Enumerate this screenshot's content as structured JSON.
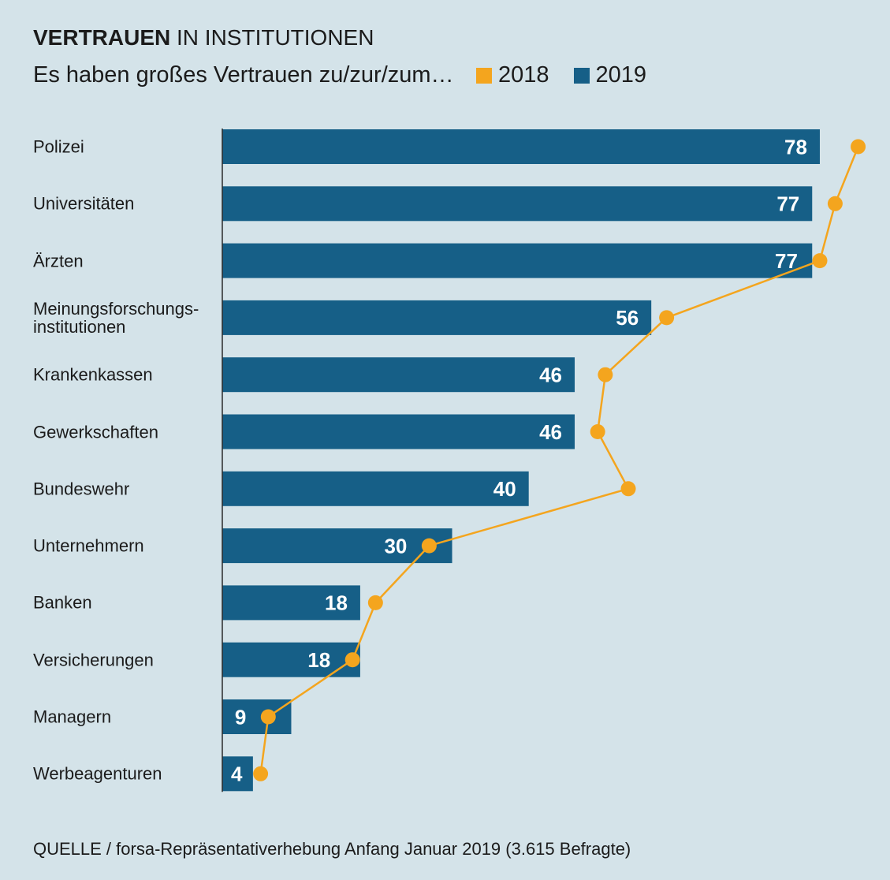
{
  "chart_data": {
    "type": "bar",
    "title_bold": "VERTRAUEN",
    "title_rest": "IN INSTITUTIONEN",
    "subtitle": "Es haben großes Vertrauen zu/zur/zum…",
    "xlim": [
      0,
      85
    ],
    "grid": false,
    "legend": "top",
    "categories": [
      "Polizei",
      "Universitäten",
      "Ärzten",
      "Meinungsforschungs-\ninstitutionen",
      "Krankenkassen",
      "Gewerkschaften",
      "Bundeswehr",
      "Unternehmern",
      "Banken",
      "Versicherungen",
      "Managern",
      "Werbeagenturen"
    ],
    "series": [
      {
        "name": "2018",
        "type": "line",
        "color": "#f4a51e",
        "values": [
          83,
          80,
          78,
          58,
          50,
          49,
          53,
          27,
          20,
          17,
          6,
          5
        ]
      },
      {
        "name": "2019",
        "type": "bar",
        "color": "#165f87",
        "values": [
          78,
          77,
          77,
          56,
          46,
          46,
          40,
          30,
          18,
          18,
          9,
          4
        ]
      }
    ]
  },
  "footer": {
    "source": "QUELLE / forsa-Repräsentativerhebung Anfang Januar 2019 (3.615 Befragte)"
  }
}
